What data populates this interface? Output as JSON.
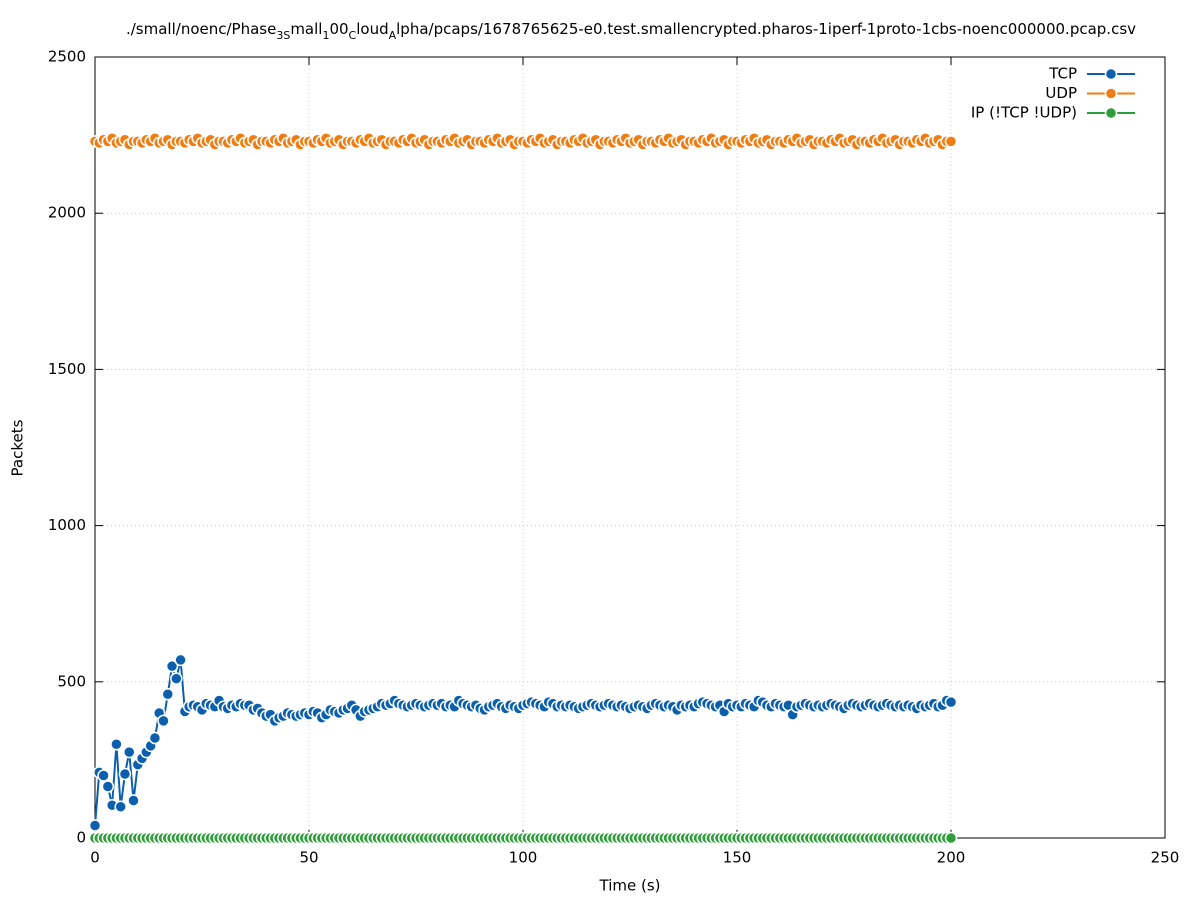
{
  "chart_data": {
    "type": "linespoints",
    "title_parts": [
      "./small/noenc/Phase",
      "3S",
      "mall",
      "1",
      "00",
      "C",
      "loud",
      "A",
      "lpha/pcaps/1678765625-e0.test.smallencrypted.pharos-1iperf-1proto-1cbs-noenc000000.pcap.csv"
    ],
    "x_label": "Time (s)",
    "y_label": "Packets",
    "xlim": [
      0,
      250
    ],
    "xticks": [
      0,
      50,
      100,
      150,
      200,
      250
    ],
    "ylim": [
      0,
      2500
    ],
    "yticks": [
      0,
      500,
      1000,
      1500,
      2000,
      2500
    ],
    "grid": true,
    "legend": "top-right",
    "x": [
      0,
      1,
      2,
      3,
      4,
      5,
      6,
      7,
      8,
      9,
      10,
      11,
      12,
      13,
      14,
      15,
      16,
      17,
      18,
      19,
      20,
      21,
      22,
      23,
      24,
      25,
      26,
      27,
      28,
      29,
      30,
      31,
      32,
      33,
      34,
      35,
      36,
      37,
      38,
      39,
      40,
      41,
      42,
      43,
      44,
      45,
      46,
      47,
      48,
      49,
      50,
      51,
      52,
      53,
      54,
      55,
      56,
      57,
      58,
      59,
      60,
      61,
      62,
      63,
      64,
      65,
      66,
      67,
      68,
      69,
      70,
      71,
      72,
      73,
      74,
      75,
      76,
      77,
      78,
      79,
      80,
      81,
      82,
      83,
      84,
      85,
      86,
      87,
      88,
      89,
      90,
      91,
      92,
      93,
      94,
      95,
      96,
      97,
      98,
      99,
      100,
      101,
      102,
      103,
      104,
      105,
      106,
      107,
      108,
      109,
      110,
      111,
      112,
      113,
      114,
      115,
      116,
      117,
      118,
      119,
      120,
      121,
      122,
      123,
      124,
      125,
      126,
      127,
      128,
      129,
      130,
      131,
      132,
      133,
      134,
      135,
      136,
      137,
      138,
      139,
      140,
      141,
      142,
      143,
      144,
      145,
      146,
      147,
      148,
      149,
      150,
      151,
      152,
      153,
      154,
      155,
      156,
      157,
      158,
      159,
      160,
      161,
      162,
      163,
      164,
      165,
      166,
      167,
      168,
      169,
      170,
      171,
      172,
      173,
      174,
      175,
      176,
      177,
      178,
      179,
      180,
      181,
      182,
      183,
      184,
      185,
      186,
      187,
      188,
      189,
      190,
      191,
      192,
      193,
      194,
      195,
      196,
      197,
      198,
      199,
      200
    ],
    "series": [
      {
        "name": "TCP",
        "color": "#0b5fad",
        "values": [
          40,
          210,
          200,
          165,
          105,
          300,
          100,
          205,
          275,
          120,
          235,
          255,
          275,
          295,
          320,
          400,
          375,
          460,
          550,
          510,
          570,
          405,
          420,
          425,
          420,
          410,
          430,
          425,
          420,
          440,
          420,
          415,
          425,
          420,
          430,
          425,
          425,
          410,
          415,
          400,
          390,
          395,
          375,
          385,
          390,
          400,
          395,
          390,
          395,
          400,
          395,
          405,
          400,
          385,
          395,
          410,
          405,
          400,
          410,
          415,
          425,
          410,
          390,
          405,
          410,
          415,
          420,
          430,
          425,
          430,
          440,
          430,
          425,
          420,
          425,
          430,
          425,
          420,
          425,
          430,
          425,
          430,
          420,
          425,
          420,
          440,
          430,
          425,
          420,
          425,
          415,
          410,
          420,
          425,
          430,
          420,
          415,
          425,
          420,
          415,
          425,
          430,
          435,
          430,
          425,
          420,
          435,
          430,
          420,
          425,
          420,
          425,
          420,
          415,
          420,
          425,
          430,
          425,
          420,
          425,
          430,
          425,
          420,
          425,
          420,
          415,
          420,
          425,
          420,
          415,
          425,
          430,
          425,
          420,
          425,
          420,
          410,
          425,
          420,
          425,
          420,
          430,
          435,
          430,
          425,
          420,
          425,
          405,
          430,
          420,
          425,
          420,
          430,
          425,
          420,
          440,
          435,
          425,
          420,
          430,
          425,
          420,
          425,
          395,
          420,
          425,
          430,
          425,
          420,
          425,
          420,
          425,
          430,
          425,
          420,
          415,
          425,
          430,
          425,
          420,
          425,
          430,
          425,
          420,
          425,
          430,
          425,
          420,
          425,
          420,
          425,
          420,
          415,
          425,
          420,
          425,
          430,
          420,
          425,
          440,
          435
        ]
      },
      {
        "name": "UDP",
        "color": "#f07d12",
        "values": [
          2230,
          2225,
          2235,
          2230,
          2240,
          2225,
          2230,
          2235,
          2220,
          2230,
          2230,
          2225,
          2235,
          2230,
          2240,
          2225,
          2230,
          2235,
          2220,
          2230,
          2230,
          2225,
          2235,
          2230,
          2240,
          2225,
          2230,
          2235,
          2220,
          2230,
          2230,
          2225,
          2235,
          2230,
          2240,
          2225,
          2230,
          2235,
          2220,
          2230,
          2230,
          2225,
          2235,
          2230,
          2240,
          2225,
          2230,
          2235,
          2220,
          2230,
          2230,
          2225,
          2235,
          2230,
          2240,
          2225,
          2230,
          2235,
          2220,
          2230,
          2230,
          2225,
          2235,
          2230,
          2240,
          2225,
          2230,
          2235,
          2220,
          2230,
          2230,
          2225,
          2235,
          2230,
          2240,
          2225,
          2230,
          2235,
          2220,
          2230,
          2230,
          2225,
          2235,
          2230,
          2240,
          2225,
          2230,
          2235,
          2220,
          2230,
          2230,
          2225,
          2235,
          2230,
          2240,
          2225,
          2230,
          2235,
          2220,
          2230,
          2230,
          2225,
          2235,
          2230,
          2240,
          2225,
          2230,
          2235,
          2220,
          2230,
          2230,
          2225,
          2235,
          2230,
          2240,
          2225,
          2230,
          2235,
          2220,
          2230,
          2230,
          2225,
          2235,
          2230,
          2240,
          2225,
          2230,
          2235,
          2220,
          2230,
          2230,
          2225,
          2235,
          2230,
          2240,
          2225,
          2230,
          2235,
          2220,
          2230,
          2230,
          2225,
          2235,
          2230,
          2240,
          2225,
          2230,
          2235,
          2220,
          2230,
          2230,
          2225,
          2235,
          2230,
          2240,
          2225,
          2230,
          2235,
          2220,
          2230,
          2230,
          2225,
          2235,
          2230,
          2240,
          2225,
          2230,
          2235,
          2220,
          2230,
          2230,
          2225,
          2235,
          2230,
          2240,
          2225,
          2230,
          2235,
          2220,
          2230,
          2230,
          2225,
          2235,
          2230,
          2240,
          2225,
          2230,
          2235,
          2220,
          2230,
          2230,
          2225,
          2235,
          2230,
          2240,
          2225,
          2230,
          2235,
          2220,
          2230,
          2230
        ]
      },
      {
        "name": "IP (!TCP  !UDP)",
        "color": "#2e9e3a",
        "values": [
          0,
          0,
          0,
          0,
          0,
          0,
          0,
          0,
          0,
          0,
          0,
          0,
          0,
          0,
          0,
          0,
          0,
          0,
          0,
          0,
          0,
          0,
          0,
          0,
          0,
          0,
          0,
          0,
          0,
          0,
          0,
          0,
          0,
          0,
          0,
          0,
          0,
          0,
          0,
          0,
          0,
          0,
          0,
          0,
          0,
          0,
          0,
          0,
          0,
          0,
          0,
          0,
          0,
          0,
          0,
          0,
          0,
          0,
          0,
          0,
          0,
          0,
          0,
          0,
          0,
          0,
          0,
          0,
          0,
          0,
          0,
          0,
          0,
          0,
          0,
          0,
          0,
          0,
          0,
          0,
          0,
          0,
          0,
          0,
          0,
          0,
          0,
          0,
          0,
          0,
          0,
          0,
          0,
          0,
          0,
          0,
          0,
          0,
          0,
          0,
          0,
          0,
          0,
          0,
          0,
          0,
          0,
          0,
          0,
          0,
          0,
          0,
          0,
          0,
          0,
          0,
          0,
          0,
          0,
          0,
          0,
          0,
          0,
          0,
          0,
          0,
          0,
          0,
          0,
          0,
          0,
          0,
          0,
          0,
          0,
          0,
          0,
          0,
          0,
          0,
          0,
          0,
          0,
          0,
          0,
          0,
          0,
          0,
          0,
          0,
          0,
          0,
          0,
          0,
          0,
          0,
          0,
          0,
          0,
          0,
          0,
          0,
          0,
          0,
          0,
          0,
          0,
          0,
          0,
          0,
          0,
          0,
          0,
          0,
          0,
          0,
          0,
          0,
          0,
          0,
          0,
          0,
          0,
          0,
          0,
          0,
          0,
          0,
          0,
          0,
          0,
          0,
          0,
          0,
          0,
          0,
          0,
          0,
          0,
          0,
          0
        ]
      }
    ]
  }
}
